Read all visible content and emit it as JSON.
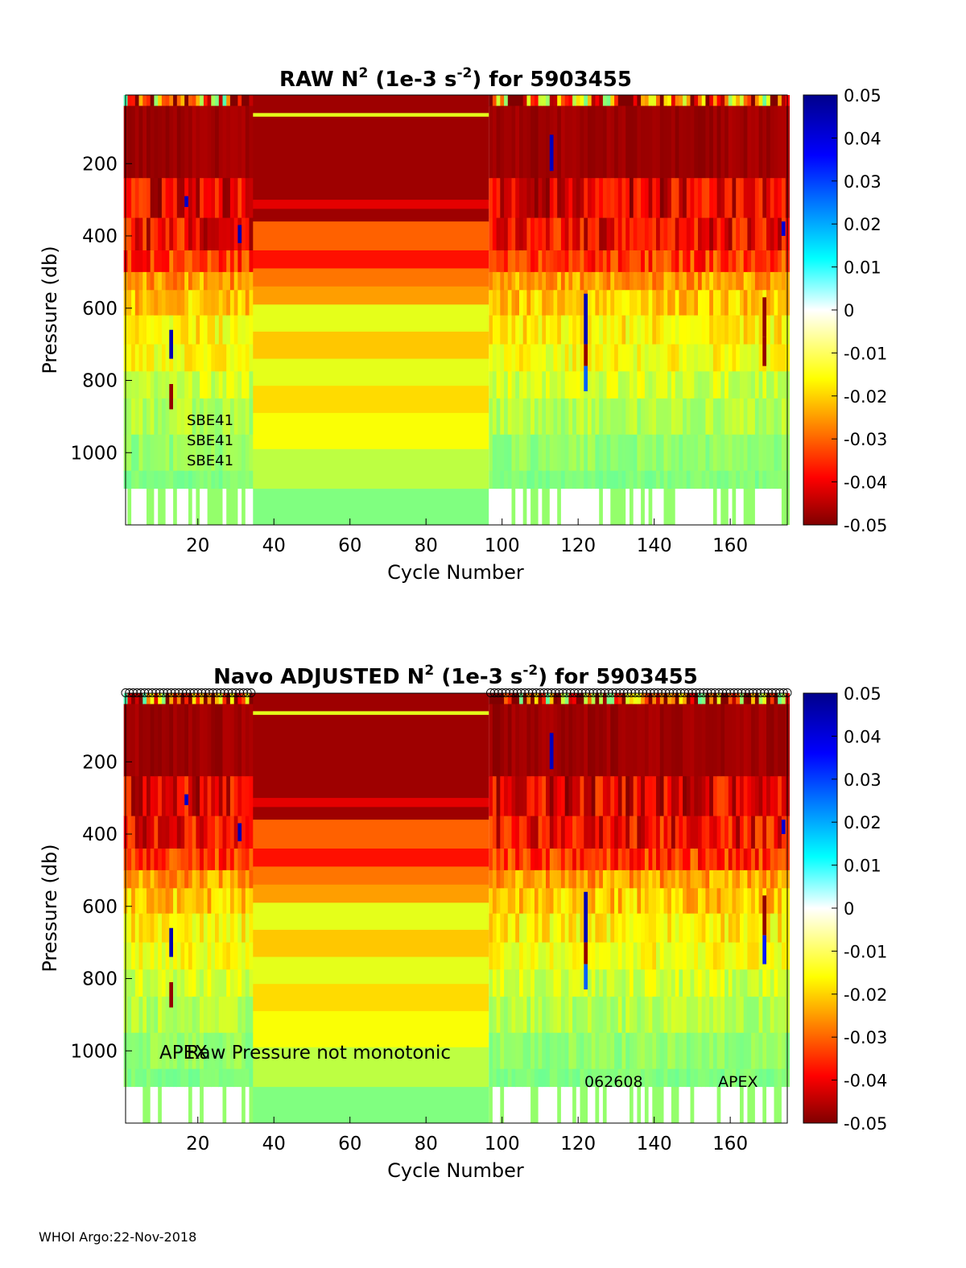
{
  "footer": {
    "text": "WHOI Argo:22-Nov-2018"
  },
  "colorbar": {
    "ticks": [
      "0.05",
      "0.04",
      "0.03",
      "0.02",
      "0.01",
      "0",
      "-0.01",
      "-0.02",
      "-0.03",
      "-0.04",
      "-0.05"
    ]
  },
  "chart_data": [
    {
      "type": "heatmap",
      "title_pre": "RAW N",
      "title_sup1": "2",
      "title_mid": " (1e-3 s",
      "title_sup2": "-2",
      "title_post": ") for 5903455",
      "xlabel": "Cycle Number",
      "ylabel": "Pressure (db)",
      "xlim": [
        1,
        175
      ],
      "ylim": [
        1200,
        10
      ],
      "xticks": [
        20,
        40,
        60,
        80,
        100,
        120,
        140,
        160
      ],
      "yticks": [
        200,
        400,
        600,
        800,
        1000
      ],
      "clim": [
        -0.05,
        0.05
      ],
      "colormap": "jet",
      "data_gap_cycles": [
        35,
        96
      ],
      "annotations": [
        "SBE41",
        "SBE41",
        "SBE41"
      ]
    },
    {
      "type": "heatmap",
      "title_pre": "Navo  ADJUSTED N",
      "title_sup1": "2",
      "title_mid": " (1e-3 s",
      "title_sup2": "-2",
      "title_post": ") for 5903455",
      "xlabel": "Cycle Number",
      "ylabel": "Pressure (db)",
      "xlim": [
        1,
        175
      ],
      "ylim": [
        1200,
        10
      ],
      "xticks": [
        20,
        40,
        60,
        80,
        100,
        120,
        140,
        160
      ],
      "yticks": [
        200,
        400,
        600,
        800,
        1000
      ],
      "clim": [
        -0.05,
        0.05
      ],
      "colormap": "jet",
      "data_gap_cycles": [
        35,
        96
      ],
      "annotations": [
        "APEX",
        "Raw Pressure not monotonic",
        "062608",
        "APEX"
      ]
    }
  ]
}
